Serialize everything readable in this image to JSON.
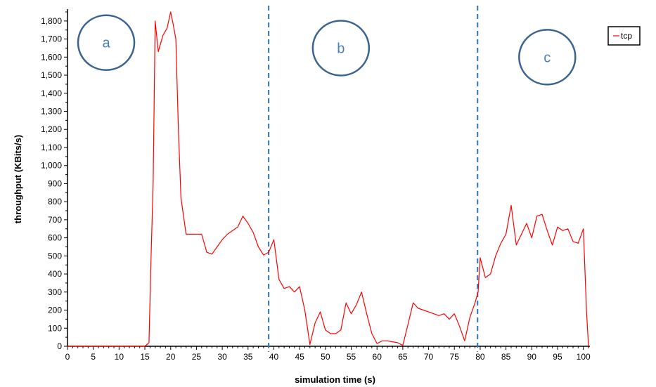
{
  "chart_data": {
    "type": "line",
    "title": "",
    "xlabel": "simulation time (s)",
    "ylabel": "throughput (KBits/s)",
    "xlim": [
      0,
      101
    ],
    "ylim": [
      0,
      1850
    ],
    "x_ticks": [
      0,
      5,
      10,
      15,
      20,
      25,
      30,
      35,
      40,
      45,
      50,
      55,
      60,
      65,
      70,
      75,
      80,
      85,
      90,
      95,
      100
    ],
    "x_tick_labels": [
      "0",
      "5",
      "10",
      "15",
      "20",
      "25",
      "30",
      "35",
      "40",
      "45",
      "50",
      "55",
      "60",
      "65",
      "70",
      "75",
      "80",
      "85",
      "90",
      "95",
      "100"
    ],
    "y_ticks": [
      0,
      100,
      200,
      300,
      400,
      500,
      600,
      700,
      800,
      900,
      1000,
      1100,
      1200,
      1300,
      1400,
      1500,
      1600,
      1700,
      1800
    ],
    "y_tick_labels": [
      "0",
      "100",
      "200",
      "300",
      "400",
      "500",
      "600",
      "700",
      "800",
      "900",
      "1,000",
      "1,100",
      "1,200",
      "1,300",
      "1,400",
      "1,500",
      "1,600",
      "1,700",
      "1,800"
    ],
    "grid": false,
    "legend": {
      "position": "top-right",
      "entries": [
        "tcp"
      ]
    },
    "line_color": "#ff0000",
    "divider_color": "#2e75b6",
    "series": [
      {
        "name": "tcp",
        "x": [
          0,
          10,
          15,
          15.8,
          16.2,
          16.6,
          17,
          17.6,
          18.5,
          19.3,
          20,
          20.5,
          21,
          21.5,
          22,
          23,
          24,
          25,
          26,
          27,
          28,
          29,
          30,
          31,
          32,
          33,
          34,
          35,
          36,
          37,
          38,
          39,
          40,
          41,
          42,
          43,
          44,
          45,
          46,
          47,
          48,
          49,
          50,
          51,
          52,
          53,
          54,
          55,
          56,
          57,
          58,
          59,
          60,
          61,
          62,
          63,
          64,
          65,
          66,
          67,
          68,
          69,
          70,
          71,
          72,
          73,
          74,
          75,
          76,
          77,
          78,
          79,
          79.6,
          80,
          81,
          82,
          83,
          84,
          85,
          86,
          87,
          88,
          89,
          90,
          91,
          92,
          93,
          94,
          95,
          96,
          97,
          98,
          99,
          100,
          100.6,
          101
        ],
        "y": [
          0,
          0,
          0,
          20,
          500,
          900,
          1800,
          1630,
          1720,
          1760,
          1850,
          1780,
          1700,
          1200,
          820,
          620,
          620,
          620,
          620,
          520,
          510,
          550,
          590,
          620,
          640,
          660,
          720,
          680,
          630,
          550,
          505,
          520,
          590,
          370,
          320,
          330,
          300,
          330,
          200,
          10,
          130,
          190,
          90,
          70,
          70,
          90,
          240,
          180,
          230,
          300,
          180,
          70,
          15,
          30,
          30,
          25,
          20,
          5,
          120,
          240,
          210,
          200,
          190,
          180,
          170,
          180,
          150,
          180,
          110,
          30,
          160,
          240,
          300,
          490,
          380,
          400,
          500,
          570,
          620,
          780,
          560,
          620,
          680,
          600,
          720,
          730,
          640,
          560,
          660,
          640,
          650,
          580,
          570,
          650,
          200,
          0
        ]
      }
    ],
    "dividers": [
      {
        "x": 39
      },
      {
        "x": 79.5
      }
    ],
    "regions": [
      {
        "label": "a",
        "x": 7.5,
        "y": 1680
      },
      {
        "label": "b",
        "x": 53,
        "y": 1650
      },
      {
        "label": "c",
        "x": 93,
        "y": 1600
      }
    ]
  }
}
